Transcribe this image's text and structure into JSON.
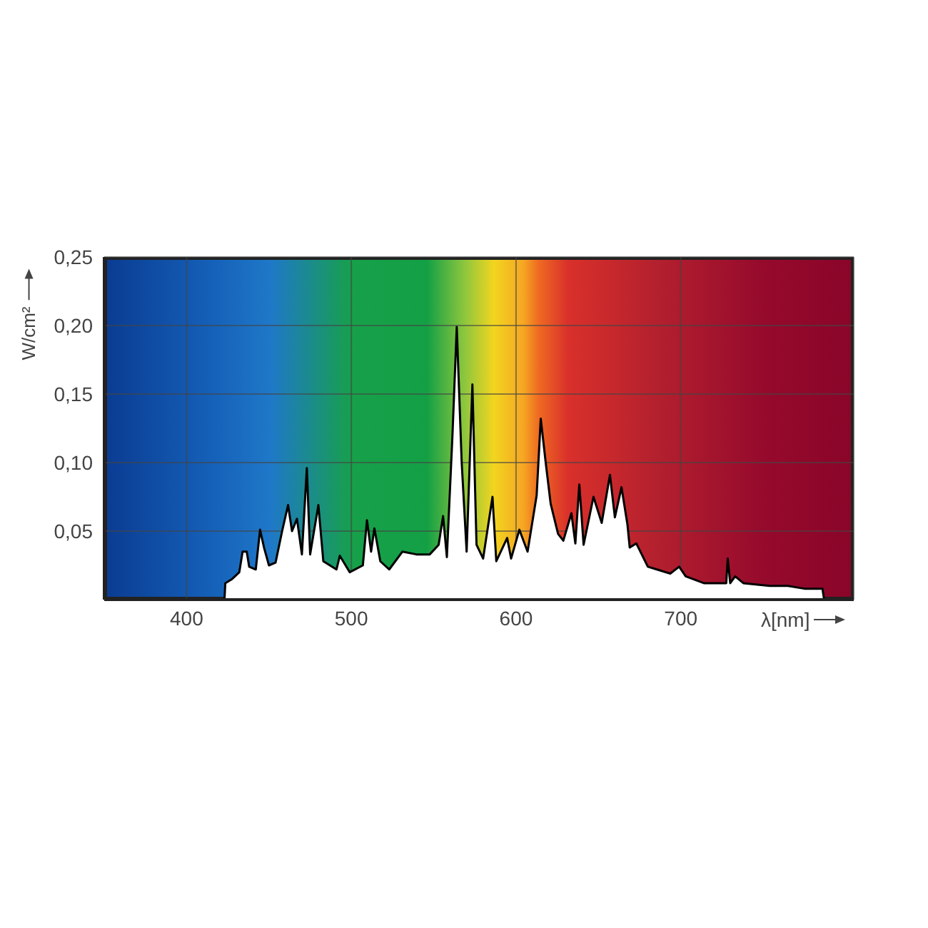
{
  "chart_data": {
    "type": "area",
    "xlabel": "λ[nm]",
    "ylabel": "W/cm²",
    "color": "#000000",
    "x": [
      423,
      423.5,
      427.6,
      432,
      434,
      436.5,
      438,
      442,
      444.6,
      447,
      450,
      454,
      458,
      461.6,
      464,
      467,
      470,
      473,
      475,
      480,
      483,
      491,
      493,
      499,
      507,
      509.5,
      512,
      514,
      517.6,
      523,
      531,
      539.5,
      547.6,
      553,
      555.7,
      558,
      561.4,
      564,
      567,
      570,
      573.5,
      576,
      580,
      585.7,
      588,
      594.6,
      597,
      602,
      607,
      612.5,
      615,
      618,
      621,
      625.5,
      628.7,
      633.6,
      636,
      638.4,
      641,
      647,
      652,
      657,
      660,
      664,
      667.6,
      669,
      673,
      680,
      685.5,
      693.6,
      699,
      703,
      714,
      727.6,
      728.5,
      730,
      733,
      738,
      754,
      765,
      775,
      786,
      787
    ],
    "values": [
      0,
      0.012,
      0.015,
      0.02,
      0.035,
      0.035,
      0.024,
      0.022,
      0.051,
      0.038,
      0.025,
      0.027,
      0.05,
      0.069,
      0.05,
      0.059,
      0.033,
      0.096,
      0.033,
      0.069,
      0.028,
      0.022,
      0.032,
      0.02,
      0.025,
      0.058,
      0.035,
      0.052,
      0.028,
      0.022,
      0.035,
      0.033,
      0.033,
      0.04,
      0.061,
      0.031,
      0.12,
      0.199,
      0.1,
      0.035,
      0.157,
      0.04,
      0.03,
      0.075,
      0.028,
      0.045,
      0.03,
      0.051,
      0.035,
      0.076,
      0.132,
      0.1,
      0.07,
      0.048,
      0.043,
      0.063,
      0.041,
      0.084,
      0.04,
      0.075,
      0.056,
      0.091,
      0.06,
      0.082,
      0.055,
      0.038,
      0.041,
      0.024,
      0.022,
      0.019,
      0.024,
      0.017,
      0.012,
      0.012,
      0.03,
      0.012,
      0.017,
      0.012,
      0.01,
      0.01,
      0.008,
      0.008,
      0
    ],
    "xlim": [
      350,
      805
    ],
    "xticks": [
      400,
      500,
      600,
      700
    ],
    "ylim": [
      0,
      0.25
    ],
    "yticks": [
      {
        "value": 0.05,
        "label": "0,05"
      },
      {
        "value": 0.1,
        "label": "0,10"
      },
      {
        "value": 0.15,
        "label": "0,15"
      },
      {
        "value": 0.2,
        "label": "0,20"
      },
      {
        "value": 0.25,
        "label": "0,25"
      }
    ],
    "grid": true
  }
}
